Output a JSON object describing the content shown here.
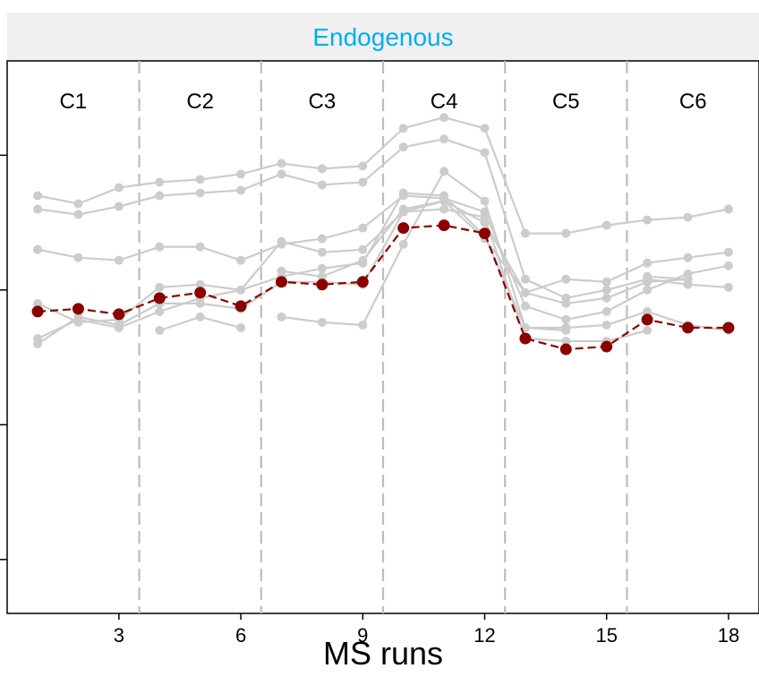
{
  "chart_data": {
    "type": "line",
    "title": "Endogenous",
    "xlabel": "MS runs",
    "ylabel": "",
    "xlim": [
      0.25,
      18.75
    ],
    "ylim": [
      8,
      28.5
    ],
    "x_ticks": [
      3,
      6,
      9,
      12,
      15,
      18
    ],
    "y_ticks_unlabeled": [
      10,
      15,
      20,
      25
    ],
    "grid": false,
    "conditions": [
      "C1",
      "C2",
      "C3",
      "C4",
      "C5",
      "C6"
    ],
    "condition_boundaries": [
      3.5,
      6.5,
      9.5,
      12.5,
      15.5
    ],
    "colors": {
      "strip_background": "#f0f0f0",
      "strip_text": "#00aeef",
      "feature_lines": "#cccccc",
      "summary_line": "#8b0000",
      "boundary_lines": "#bdbdbd"
    },
    "features": [
      {
        "values": [
          [
            1,
            23.0
          ],
          [
            2,
            22.8
          ],
          [
            3,
            23.1
          ],
          [
            4,
            23.5
          ],
          [
            5,
            23.6
          ],
          [
            6,
            23.7
          ],
          [
            7,
            24.3
          ],
          [
            8,
            23.9
          ],
          [
            9,
            24.0
          ],
          [
            10,
            25.3
          ],
          [
            11,
            25.6
          ],
          [
            12,
            25.1
          ],
          [
            13,
            20.4
          ],
          [
            14,
            19.7
          ],
          [
            15,
            20.0
          ],
          [
            16,
            20.4
          ],
          [
            17,
            20.2
          ],
          [
            18,
            20.1
          ]
        ]
      },
      {
        "values": [
          [
            1,
            23.5
          ],
          [
            2,
            23.2
          ],
          [
            3,
            23.8
          ],
          [
            4,
            24.0
          ],
          [
            5,
            24.1
          ],
          [
            6,
            24.3
          ],
          [
            7,
            24.7
          ],
          [
            8,
            24.5
          ],
          [
            9,
            24.6
          ],
          [
            10,
            26.0
          ],
          [
            11,
            26.4
          ],
          [
            12,
            26.0
          ],
          [
            13,
            22.1
          ],
          [
            14,
            22.1
          ],
          [
            15,
            22.4
          ],
          [
            16,
            22.6
          ],
          [
            17,
            22.7
          ],
          [
            18,
            23.0
          ]
        ]
      },
      {
        "values": [
          [
            1,
            21.5
          ],
          [
            2,
            21.2
          ],
          [
            3,
            21.1
          ],
          [
            4,
            21.6
          ],
          [
            5,
            21.6
          ],
          [
            6,
            21.1
          ],
          [
            7,
            21.7
          ],
          [
            8,
            21.9
          ],
          [
            9,
            22.3
          ],
          [
            10,
            23.5
          ],
          [
            11,
            23.4
          ],
          [
            12,
            22.9
          ],
          [
            13,
            19.4
          ],
          [
            14,
            18.9
          ],
          [
            15,
            19.2
          ],
          [
            16,
            20.0
          ],
          [
            17,
            20.6
          ],
          [
            18,
            20.9
          ]
        ]
      },
      {
        "values": [
          [
            1,
            19.5
          ],
          [
            2,
            18.8
          ],
          [
            3,
            18.9
          ],
          [
            4,
            20.1
          ],
          [
            5,
            20.2
          ],
          [
            6,
            20.0
          ],
          [
            7,
            21.8
          ],
          [
            8,
            21.4
          ],
          [
            9,
            21.5
          ],
          [
            10,
            22.9
          ],
          [
            11,
            23.3
          ],
          [
            12,
            22.5
          ],
          [
            13,
            19.9
          ],
          [
            14,
            20.4
          ],
          [
            15,
            20.3
          ],
          [
            16,
            21.0
          ],
          [
            17,
            21.2
          ],
          [
            18,
            21.4
          ]
        ]
      },
      {
        "values": [
          [
            1,
            18.2
          ],
          [
            2,
            18.9
          ],
          [
            3,
            18.6
          ],
          [
            4,
            19.2
          ],
          [
            5,
            19.7
          ],
          [
            6,
            20.0
          ],
          [
            7,
            20.5
          ],
          [
            8,
            20.8
          ],
          [
            9,
            21.0
          ],
          [
            10,
            23.6
          ],
          [
            11,
            23.5
          ],
          [
            12,
            22.0
          ],
          [
            13,
            18.6
          ],
          [
            14,
            18.6
          ],
          [
            15,
            18.7
          ],
          [
            16,
            19.2
          ],
          [
            17,
            18.7
          ],
          [
            18,
            18.5
          ]
        ]
      },
      {
        "values": [
          [
            1,
            18.0
          ],
          [
            2,
            19.0
          ],
          [
            3,
            18.7
          ],
          [
            4,
            19.5
          ],
          [
            5,
            19.5
          ],
          [
            6,
            19.3
          ],
          [
            7,
            20.3
          ],
          [
            8,
            20.3
          ],
          [
            9,
            20.2
          ],
          [
            10,
            22.9
          ],
          [
            11,
            23.0
          ],
          [
            12,
            22.7
          ],
          [
            13,
            18.2
          ],
          [
            14,
            18.1
          ],
          [
            15,
            18.1
          ],
          [
            16,
            18.5
          ]
        ]
      },
      {
        "values": [
          [
            4,
            18.5
          ],
          [
            5,
            19.0
          ],
          [
            6,
            18.6
          ]
        ]
      },
      {
        "values": [
          [
            7,
            19.0
          ],
          [
            8,
            18.8
          ],
          [
            9,
            18.7
          ],
          [
            10,
            21.7
          ],
          [
            11,
            24.4
          ],
          [
            12,
            23.3
          ],
          [
            13,
            18.6
          ],
          [
            14,
            18.5
          ]
        ]
      },
      {
        "values": [
          [
            7,
            20.7
          ],
          [
            8,
            20.5
          ],
          [
            9,
            21.1
          ],
          [
            10,
            23.0
          ],
          [
            11,
            23.3
          ],
          [
            12,
            21.9
          ],
          [
            13,
            19.9
          ],
          [
            14,
            19.5
          ],
          [
            15,
            19.7
          ],
          [
            16,
            20.3
          ],
          [
            17,
            20.4
          ]
        ]
      },
      {
        "values": [
          [
            16,
            20.5
          ],
          [
            17,
            20.4
          ]
        ]
      }
    ],
    "series": [
      {
        "values": [
          [
            1,
            19.2
          ],
          [
            2,
            19.3
          ],
          [
            3,
            19.1
          ],
          [
            4,
            19.7
          ],
          [
            5,
            19.9
          ],
          [
            6,
            19.4
          ],
          [
            7,
            20.3
          ],
          [
            8,
            20.2
          ],
          [
            9,
            20.3
          ],
          [
            10,
            22.3
          ],
          [
            11,
            22.4
          ],
          [
            12,
            22.1
          ],
          [
            13,
            18.2
          ],
          [
            14,
            17.8
          ],
          [
            15,
            17.9
          ],
          [
            16,
            18.9
          ],
          [
            17,
            18.6
          ],
          [
            18,
            18.6
          ]
        ]
      }
    ]
  }
}
